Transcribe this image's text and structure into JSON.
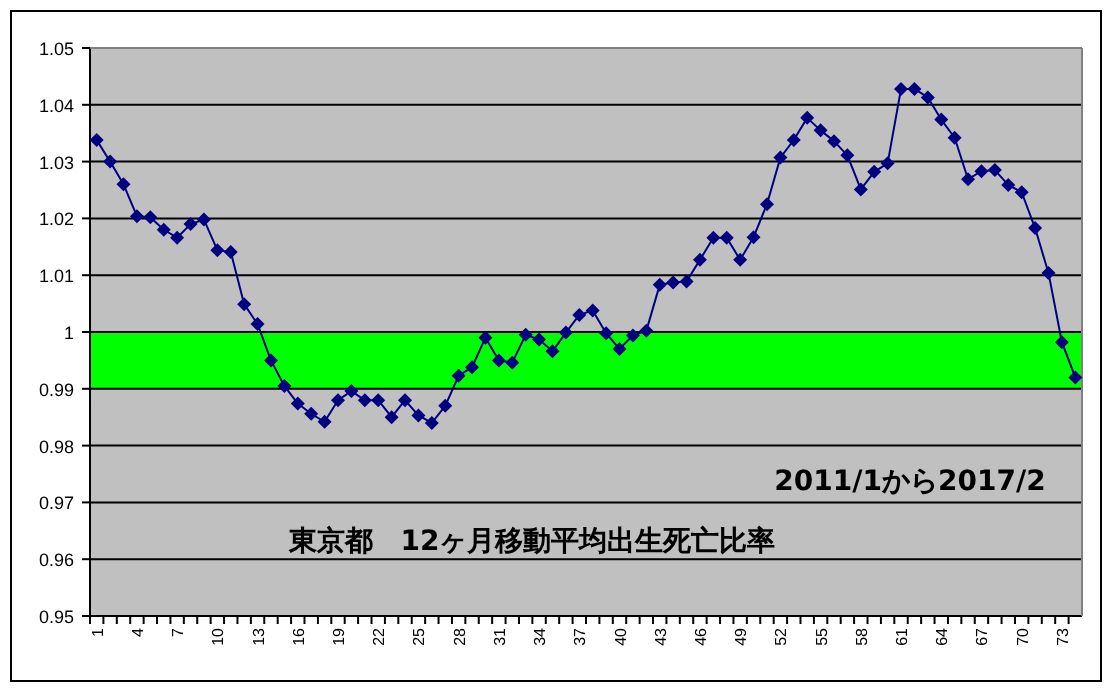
{
  "chart_data": {
    "type": "line",
    "categories": [
      "1",
      null,
      null,
      "4",
      null,
      null,
      "7",
      null,
      null,
      "10",
      null,
      null,
      "13",
      null,
      null,
      "16",
      null,
      null,
      "19",
      null,
      null,
      "22",
      null,
      null,
      "25",
      null,
      null,
      "28",
      null,
      null,
      "31",
      null,
      null,
      "34",
      null,
      null,
      "37",
      null,
      null,
      "40",
      null,
      null,
      "43",
      null,
      null,
      "46",
      null,
      null,
      "49",
      null,
      null,
      "52",
      null,
      null,
      "55",
      null,
      null,
      "58",
      null,
      null,
      "61",
      null,
      null,
      "64",
      null,
      null,
      "67",
      null,
      null,
      "70",
      null,
      null,
      "73",
      null
    ],
    "series": [
      {
        "color": "#000080",
        "values": [
          1.0338,
          1.03,
          1.026,
          1.0204,
          1.0202,
          1.018,
          1.0166,
          1.019,
          1.0198,
          1.0144,
          1.0141,
          1.0049,
          1.0014,
          0.995,
          0.9905,
          0.9874,
          0.9856,
          0.9842,
          0.988,
          0.9896,
          0.988,
          0.988,
          0.985,
          0.988,
          0.9853,
          0.984,
          0.987,
          0.9923,
          0.9938,
          0.999,
          0.995,
          0.9946,
          0.9995,
          0.9987,
          0.9966,
          0.9999,
          1.003,
          1.0038,
          0.9998,
          0.997,
          0.9994,
          1.0002,
          1.0083,
          1.0087,
          1.0089,
          1.0127,
          1.0166,
          1.0166,
          1.0127,
          1.0167,
          1.0225,
          1.0307,
          1.0338,
          1.0377,
          1.0355,
          1.0336,
          1.0311,
          1.0251,
          1.0282,
          1.0297,
          1.0428,
          1.0428,
          1.0413,
          1.0374,
          1.0342,
          1.0269,
          1.0283,
          1.0285,
          1.0259,
          1.0246,
          1.0183,
          1.0104,
          0.9982,
          0.992
        ]
      }
    ],
    "ylim": [
      0.95,
      1.05
    ],
    "yticks": [
      0.95,
      0.96,
      0.97,
      0.98,
      0.99,
      1,
      1.01,
      1.02,
      1.03,
      1.04,
      1.05
    ],
    "bands": [
      {
        "axis": "y",
        "from": 0.99,
        "to": 1,
        "color": "#00ff00"
      }
    ],
    "annotations": [
      "2011/1から2017/2",
      "東京都　12ヶ月移動平均出生死亡比率"
    ],
    "grid": "y",
    "marker": "diamond",
    "line_style": "solid"
  }
}
